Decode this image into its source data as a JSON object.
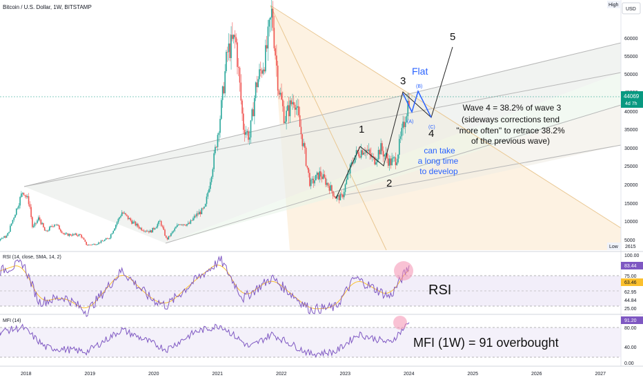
{
  "header": {
    "title": "Bitcoin / U.S. Dollar, 1W, BITSTAMP",
    "high_label": "High",
    "low_label": "Low",
    "currency_label": "USD"
  },
  "price_axis": {
    "ticks": [
      "60000",
      "55000",
      "50000",
      "45000",
      "40000",
      "35000",
      "30000",
      "25000",
      "20000",
      "15000",
      "10000",
      "5000"
    ],
    "last_price": "44069",
    "countdown": "4d 7h",
    "low_value": "2615"
  },
  "rsi_panel": {
    "label": "RSI (14, close, SMA, 14, 2)",
    "ticks": [
      "100.00",
      "75.00",
      "62.95",
      "44.84",
      "25.00"
    ],
    "value_badge": "83.44",
    "sma_badge": "63.46",
    "annotation": "RSI"
  },
  "mfi_panel": {
    "label": "MFI (14)",
    "ticks": [
      "80.00",
      "40.00",
      "0.00"
    ],
    "value_badge": "91.20",
    "annotation": "MFI (1W) = 91 overbought"
  },
  "time_axis": {
    "ticks": [
      "2018",
      "2019",
      "2020",
      "2021",
      "2022",
      "2023",
      "2024",
      "2025",
      "2026",
      "2027"
    ]
  },
  "annotations": {
    "wave1": "1",
    "wave2": "2",
    "wave3": "3",
    "wave4": "4",
    "wave5": "5",
    "flat": "Flat",
    "flat_a": "(A)",
    "flat_b": "(B)",
    "flat_c": "(C)",
    "note_lines": [
      "Wave 4 = 38.2% of wave 3",
      "(sideways corrections tend",
      "\"more often\" to retrace 38.2%",
      "of the previous wave)"
    ],
    "blue_lines": [
      "can take",
      "a long time",
      "to develop"
    ]
  },
  "colors": {
    "up": "#26a69a",
    "down": "#ef5350",
    "rsi": "#7e57c2",
    "rsi_sma": "#fbc02d",
    "blue_text": "#2962ff",
    "price_badge": "#089981"
  },
  "chart_data": {
    "type": "candlestick",
    "title": "Bitcoin / U.S. Dollar, 1W, BITSTAMP",
    "y_range": [
      2615,
      69000
    ],
    "x_range": [
      "2018-01",
      "2027-03"
    ],
    "price_path": [
      [
        2017.0,
        2800
      ],
      [
        2017.4,
        4000
      ],
      [
        2017.7,
        6000
      ],
      [
        2017.95,
        18500
      ],
      [
        2018.05,
        15000
      ],
      [
        2018.1,
        8000
      ],
      [
        2018.2,
        11000
      ],
      [
        2018.3,
        7000
      ],
      [
        2018.45,
        9500
      ],
      [
        2018.6,
        6400
      ],
      [
        2018.85,
        6300
      ],
      [
        2018.95,
        3500
      ],
      [
        2019.1,
        3900
      ],
      [
        2019.3,
        5500
      ],
      [
        2019.5,
        12500
      ],
      [
        2019.65,
        10000
      ],
      [
        2019.8,
        8000
      ],
      [
        2019.95,
        7200
      ],
      [
        2020.1,
        10000
      ],
      [
        2020.2,
        5000
      ],
      [
        2020.4,
        9500
      ],
      [
        2020.55,
        9200
      ],
      [
        2020.65,
        11500
      ],
      [
        2020.8,
        13500
      ],
      [
        2020.95,
        28000
      ],
      [
        2021.05,
        40000
      ],
      [
        2021.15,
        56000
      ],
      [
        2021.28,
        60000
      ],
      [
        2021.4,
        36000
      ],
      [
        2021.5,
        33000
      ],
      [
        2021.6,
        47000
      ],
      [
        2021.75,
        55000
      ],
      [
        2021.85,
        67000
      ],
      [
        2021.95,
        47000
      ],
      [
        2022.05,
        38000
      ],
      [
        2022.2,
        44000
      ],
      [
        2022.35,
        30000
      ],
      [
        2022.45,
        20000
      ],
      [
        2022.6,
        23000
      ],
      [
        2022.75,
        19500
      ],
      [
        2022.85,
        16500
      ],
      [
        2022.95,
        16600
      ],
      [
        2023.05,
        23000
      ],
      [
        2023.15,
        28000
      ],
      [
        2023.3,
        30000
      ],
      [
        2023.45,
        26500
      ],
      [
        2023.55,
        30000
      ],
      [
        2023.7,
        26000
      ],
      [
        2023.8,
        27000
      ],
      [
        2023.9,
        35000
      ],
      [
        2024.0,
        44069
      ]
    ],
    "rsi": [
      [
        2017.0,
        60
      ],
      [
        2017.95,
        88
      ],
      [
        2018.2,
        35
      ],
      [
        2018.6,
        42
      ],
      [
        2018.95,
        22
      ],
      [
        2019.5,
        78
      ],
      [
        2019.95,
        40
      ],
      [
        2020.2,
        30
      ],
      [
        2020.65,
        65
      ],
      [
        2021.05,
        92
      ],
      [
        2021.4,
        40
      ],
      [
        2021.85,
        68
      ],
      [
        2022.45,
        25
      ],
      [
        2022.85,
        28
      ],
      [
        2023.15,
        68
      ],
      [
        2023.7,
        42
      ],
      [
        2024.0,
        83.44
      ]
    ],
    "rsi_sma": 63.46,
    "mfi": [
      [
        2017.0,
        55
      ],
      [
        2017.95,
        80
      ],
      [
        2018.3,
        35
      ],
      [
        2018.95,
        25
      ],
      [
        2019.5,
        75
      ],
      [
        2020.2,
        30
      ],
      [
        2020.65,
        70
      ],
      [
        2021.05,
        85
      ],
      [
        2021.5,
        35
      ],
      [
        2021.85,
        65
      ],
      [
        2022.45,
        20
      ],
      [
        2022.85,
        25
      ],
      [
        2023.2,
        65
      ],
      [
        2023.7,
        45
      ],
      [
        2024.0,
        91.2
      ]
    ],
    "wave_labels": [
      "1",
      "2",
      "3",
      "4",
      "5"
    ],
    "ylabel": "USD"
  }
}
